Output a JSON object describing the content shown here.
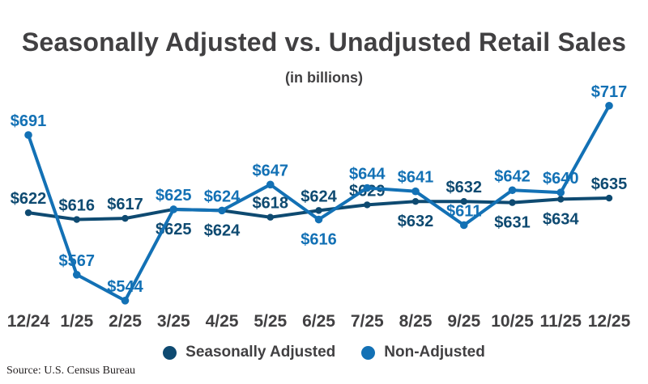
{
  "chart_data": {
    "type": "line",
    "title": "Seasonally Adjusted vs. Unadjusted Retail Sales",
    "subtitle": "(in billions)",
    "value_prefix": "$",
    "axis_color": "#414042",
    "grid": false,
    "legend_position": "bottom",
    "x_labels": [
      "12/24",
      "1/25",
      "2/25",
      "3/25",
      "4/25",
      "5/25",
      "6/25",
      "7/25",
      "8/25",
      "9/25",
      "10/25",
      "11/25",
      "12/25"
    ],
    "ylim": [
      530,
      730
    ],
    "series": [
      {
        "name": "Seasonally Adjusted",
        "color": "#0e4a71",
        "values": [
          622,
          616,
          617,
          625,
          624,
          618,
          624,
          629,
          632,
          632,
          631,
          634,
          635
        ],
        "label_positions": [
          "above",
          "above",
          "above",
          "below",
          "below",
          "above",
          "above",
          "above",
          "below",
          "above",
          "below",
          "below",
          "above"
        ]
      },
      {
        "name": "Non-Adjusted",
        "color": "#1371b5",
        "values": [
          691,
          567,
          544,
          625,
          624,
          647,
          616,
          644,
          641,
          611,
          642,
          640,
          717
        ],
        "label_positions": [
          "above",
          "above",
          "above",
          "above",
          "above",
          "above",
          "below",
          "above",
          "above",
          "above",
          "above",
          "above",
          "above"
        ]
      }
    ],
    "source": "Source: U.S. Census Bureau"
  }
}
